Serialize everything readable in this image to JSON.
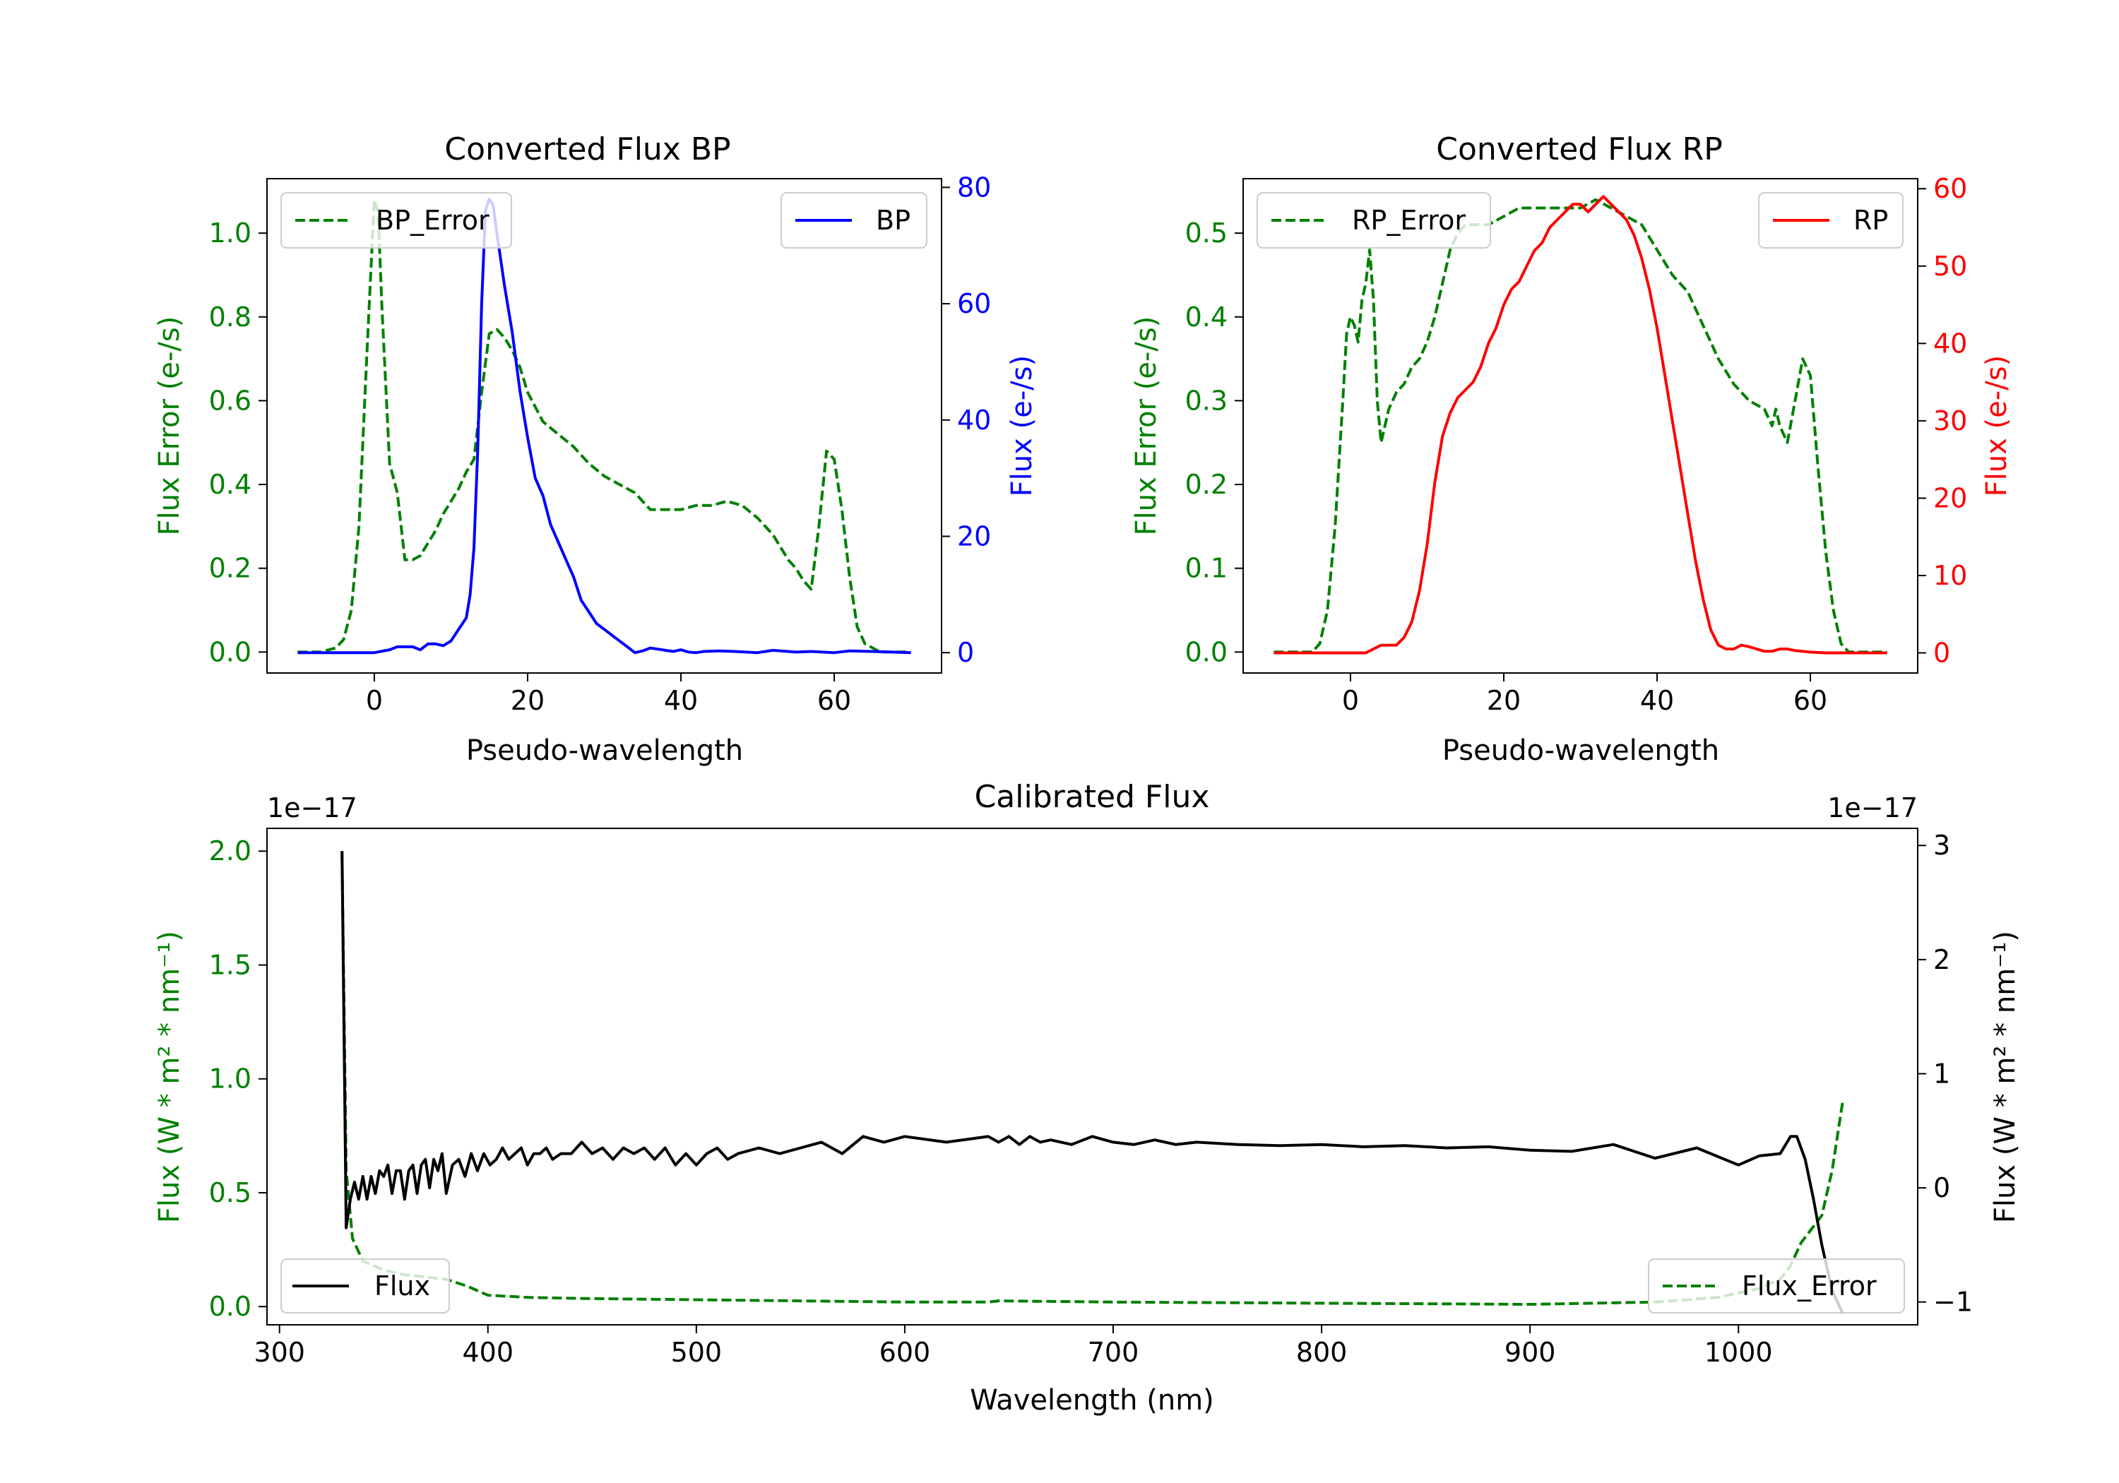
{
  "colors": {
    "bp": "#0000ff",
    "rp": "#ff0000",
    "error": "#008000",
    "flux": "#000000"
  },
  "chart_data": [
    {
      "type": "line",
      "title": "Converted Flux BP",
      "xlabel": "Pseudo-wavelength",
      "ylabel_left": "Flux Error (e-/s)",
      "ylabel_right": "Flux (e-/s)",
      "xlim": [
        -14,
        74
      ],
      "ylim_left": [
        -0.05,
        1.13
      ],
      "ylim_right": [
        -3.5,
        81.5
      ],
      "xticks": [
        "0",
        "20",
        "40",
        "60"
      ],
      "yticks_left": [
        "0.0",
        "0.2",
        "0.4",
        "0.6",
        "0.8",
        "1.0"
      ],
      "yticks_right": [
        "0",
        "20",
        "40",
        "60",
        "80"
      ],
      "legend_left": "BP_Error",
      "legend_right": "BP",
      "series": [
        {
          "name": "BP_Error",
          "axis": "left",
          "x": [
            -10,
            -7,
            -5,
            -4,
            -3,
            -2,
            -1,
            0,
            0.5,
            1,
            2,
            3,
            4,
            5,
            6,
            7,
            8,
            9,
            10,
            11,
            12,
            13,
            14,
            15,
            16,
            17,
            18,
            19,
            20,
            22,
            24,
            26,
            28,
            30,
            32,
            34,
            36,
            38,
            40,
            42,
            44,
            46,
            48,
            50,
            52,
            54,
            55,
            56,
            57,
            58,
            59,
            60,
            61,
            62,
            63,
            64,
            65,
            66,
            67,
            68,
            69,
            70
          ],
          "y": [
            0,
            0,
            0.01,
            0.03,
            0.1,
            0.3,
            0.7,
            1.08,
            1.05,
            0.82,
            0.45,
            0.38,
            0.22,
            0.22,
            0.23,
            0.26,
            0.29,
            0.33,
            0.36,
            0.39,
            0.43,
            0.46,
            0.62,
            0.76,
            0.77,
            0.75,
            0.72,
            0.68,
            0.62,
            0.55,
            0.52,
            0.49,
            0.45,
            0.42,
            0.4,
            0.38,
            0.34,
            0.34,
            0.34,
            0.35,
            0.35,
            0.36,
            0.35,
            0.32,
            0.28,
            0.22,
            0.2,
            0.17,
            0.15,
            0.3,
            0.48,
            0.46,
            0.34,
            0.18,
            0.06,
            0.02,
            0.01,
            0,
            0,
            0,
            0,
            0
          ]
        },
        {
          "name": "BP",
          "axis": "right",
          "x": [
            -10,
            -5,
            0,
            2,
            3,
            5,
            6,
            7,
            8,
            9,
            10,
            11,
            12,
            12.5,
            13,
            13.5,
            14,
            14.5,
            15,
            15.5,
            16,
            17,
            18,
            19,
            20,
            21,
            22,
            23,
            24,
            25,
            26,
            27,
            28,
            29,
            30,
            31,
            32,
            33,
            34,
            35,
            36,
            37,
            38,
            39,
            40,
            41,
            42,
            43,
            45,
            47,
            50,
            52,
            55,
            57,
            60,
            62,
            65,
            70
          ],
          "y": [
            0,
            0,
            0,
            0.5,
            1,
            1,
            0.5,
            1.5,
            1.5,
            1.2,
            2,
            4,
            6,
            10,
            18,
            35,
            60,
            76,
            78,
            77,
            72,
            63,
            55,
            45,
            37,
            30,
            27,
            22,
            19,
            16,
            13,
            9,
            7,
            5,
            4,
            3,
            2,
            1,
            0,
            0.3,
            0.8,
            0.6,
            0.4,
            0.2,
            0.5,
            0.1,
            0,
            0.2,
            0.3,
            0.2,
            0,
            0.4,
            0.1,
            0.2,
            0,
            0.3,
            0.2,
            0
          ]
        }
      ]
    },
    {
      "type": "line",
      "title": "Converted Flux RP",
      "xlabel": "Pseudo-wavelength",
      "ylabel_left": "Flux Error (e-/s)",
      "ylabel_right": "Flux (e-/s)",
      "xlim": [
        -14,
        74
      ],
      "ylim_left": [
        -0.025,
        0.565
      ],
      "ylim_right": [
        -2.6,
        61.3
      ],
      "xticks": [
        "0",
        "20",
        "40",
        "60"
      ],
      "yticks_left": [
        "0.0",
        "0.1",
        "0.2",
        "0.3",
        "0.4",
        "0.5"
      ],
      "yticks_right": [
        "0",
        "10",
        "20",
        "30",
        "40",
        "50",
        "60"
      ],
      "legend_left": "RP_Error",
      "legend_right": "RP",
      "series": [
        {
          "name": "RP_Error",
          "axis": "left",
          "x": [
            -10,
            -5,
            -4,
            -3,
            -2,
            -1,
            -0.5,
            0,
            0.5,
            1,
            1.5,
            2,
            2.5,
            3,
            3.5,
            4,
            5,
            6,
            7,
            8,
            9,
            10,
            11,
            12,
            13,
            14,
            15,
            16,
            18,
            20,
            22,
            24,
            26,
            28,
            30,
            32,
            34,
            36,
            38,
            40,
            42,
            44,
            46,
            48,
            50,
            52,
            54,
            55,
            55.5,
            56,
            56.5,
            57,
            58,
            59,
            60,
            61,
            62,
            63,
            64,
            65,
            66,
            70
          ],
          "y": [
            0,
            0,
            0.01,
            0.05,
            0.15,
            0.3,
            0.38,
            0.4,
            0.39,
            0.37,
            0.42,
            0.44,
            0.48,
            0.42,
            0.3,
            0.25,
            0.29,
            0.31,
            0.32,
            0.34,
            0.35,
            0.37,
            0.4,
            0.44,
            0.48,
            0.5,
            0.51,
            0.51,
            0.51,
            0.52,
            0.53,
            0.53,
            0.53,
            0.53,
            0.53,
            0.54,
            0.53,
            0.52,
            0.51,
            0.48,
            0.45,
            0.43,
            0.39,
            0.35,
            0.32,
            0.3,
            0.29,
            0.27,
            0.29,
            0.27,
            0.26,
            0.25,
            0.3,
            0.35,
            0.33,
            0.22,
            0.12,
            0.05,
            0.01,
            0,
            0,
            0
          ]
        },
        {
          "name": "RP",
          "axis": "right",
          "x": [
            -10,
            -5,
            0,
            2,
            3,
            4,
            5,
            6,
            7,
            8,
            9,
            10,
            11,
            12,
            13,
            14,
            15,
            16,
            17,
            18,
            19,
            20,
            21,
            22,
            23,
            24,
            25,
            26,
            27,
            28,
            29,
            30,
            31,
            32,
            33,
            34,
            35,
            36,
            37,
            38,
            39,
            40,
            41,
            42,
            43,
            44,
            45,
            46,
            47,
            48,
            49,
            50,
            51,
            52,
            53,
            54,
            55,
            56,
            57,
            58,
            60,
            62,
            65,
            70
          ],
          "y": [
            0,
            0,
            0,
            0,
            0.5,
            1,
            1,
            1,
            2,
            4,
            8,
            14,
            22,
            28,
            31,
            33,
            34,
            35,
            37,
            40,
            42,
            45,
            47,
            48,
            50,
            52,
            53,
            55,
            56,
            57,
            58,
            58,
            57,
            58,
            59,
            58,
            57,
            56,
            54,
            51,
            47,
            42,
            36,
            30,
            24,
            18,
            12,
            7,
            3,
            1,
            0.5,
            0.5,
            1,
            0.8,
            0.5,
            0.2,
            0.2,
            0.5,
            0.5,
            0.3,
            0.1,
            0,
            0,
            0
          ]
        }
      ]
    },
    {
      "type": "line",
      "title": "Calibrated Flux",
      "xlabel": "Wavelength (nm)",
      "ylabel_left": "Flux (W * m² * nm⁻¹)",
      "ylabel_right": "Flux (W * m² * nm⁻¹)",
      "offset_left": "1e−17",
      "offset_right": "1e−17",
      "xlim": [
        294,
        1086
      ],
      "ylim_left": [
        -0.08,
        2.1
      ],
      "ylim_right": [
        -1.2,
        3.15
      ],
      "xticks": [
        "300",
        "400",
        "500",
        "600",
        "700",
        "800",
        "900",
        "1000"
      ],
      "yticks_left": [
        "0.0",
        "0.5",
        "1.0",
        "1.5",
        "2.0"
      ],
      "yticks_right": [
        "−1",
        "0",
        "1",
        "2",
        "3"
      ],
      "legend_left": "Flux",
      "legend_right": "Flux_Error",
      "series": [
        {
          "name": "Flux_Error",
          "axis": "left",
          "x": [
            330,
            332,
            335,
            340,
            345,
            350,
            360,
            370,
            380,
            390,
            400,
            420,
            450,
            500,
            550,
            600,
            640,
            645,
            700,
            800,
            900,
            960,
            990,
            1000,
            1010,
            1020,
            1025,
            1030,
            1040,
            1045,
            1050
          ],
          "y": [
            2.0,
            0.6,
            0.3,
            0.2,
            0.18,
            0.16,
            0.14,
            0.13,
            0.12,
            0.09,
            0.05,
            0.04,
            0.035,
            0.03,
            0.025,
            0.02,
            0.02,
            0.025,
            0.02,
            0.015,
            0.01,
            0.02,
            0.04,
            0.06,
            0.08,
            0.12,
            0.18,
            0.28,
            0.4,
            0.6,
            0.9
          ]
        },
        {
          "name": "Flux",
          "axis": "right",
          "x": [
            330,
            332,
            334,
            336,
            338,
            340,
            342,
            344,
            346,
            348,
            350,
            352,
            354,
            356,
            358,
            360,
            362,
            364,
            366,
            368,
            370,
            372,
            374,
            376,
            378,
            380,
            383,
            386,
            389,
            392,
            395,
            398,
            401,
            404,
            407,
            410,
            413,
            416,
            419,
            422,
            425,
            428,
            431,
            435,
            440,
            445,
            450,
            455,
            460,
            465,
            470,
            475,
            480,
            485,
            490,
            495,
            500,
            505,
            510,
            515,
            520,
            530,
            540,
            550,
            560,
            570,
            580,
            590,
            600,
            620,
            640,
            645,
            650,
            655,
            660,
            665,
            670,
            680,
            690,
            700,
            710,
            720,
            730,
            740,
            760,
            780,
            800,
            820,
            840,
            860,
            880,
            900,
            920,
            940,
            960,
            980,
            1000,
            1010,
            1020,
            1025,
            1028,
            1032,
            1036,
            1040,
            1045,
            1050
          ],
          "y": [
            2.95,
            -0.35,
            -0.1,
            0.05,
            -0.1,
            0.1,
            -0.1,
            0.1,
            -0.05,
            0.15,
            0.1,
            0.2,
            -0.05,
            0.15,
            0.15,
            -0.1,
            0.15,
            0.2,
            -0.05,
            0.2,
            0.25,
            0,
            0.25,
            0.15,
            0.3,
            -0.05,
            0.2,
            0.25,
            0.1,
            0.3,
            0.15,
            0.3,
            0.2,
            0.25,
            0.35,
            0.25,
            0.3,
            0.35,
            0.2,
            0.3,
            0.3,
            0.35,
            0.25,
            0.3,
            0.3,
            0.4,
            0.3,
            0.35,
            0.25,
            0.35,
            0.3,
            0.35,
            0.25,
            0.35,
            0.2,
            0.3,
            0.2,
            0.3,
            0.35,
            0.25,
            0.3,
            0.35,
            0.3,
            0.35,
            0.4,
            0.3,
            0.45,
            0.4,
            0.45,
            0.4,
            0.45,
            0.4,
            0.45,
            0.38,
            0.45,
            0.4,
            0.42,
            0.38,
            0.45,
            0.4,
            0.38,
            0.42,
            0.38,
            0.4,
            0.38,
            0.37,
            0.38,
            0.36,
            0.37,
            0.35,
            0.36,
            0.33,
            0.32,
            0.38,
            0.26,
            0.35,
            0.2,
            0.28,
            0.3,
            0.45,
            0.45,
            0.25,
            -0.1,
            -0.5,
            -0.9,
            -1.1
          ]
        }
      ]
    }
  ]
}
